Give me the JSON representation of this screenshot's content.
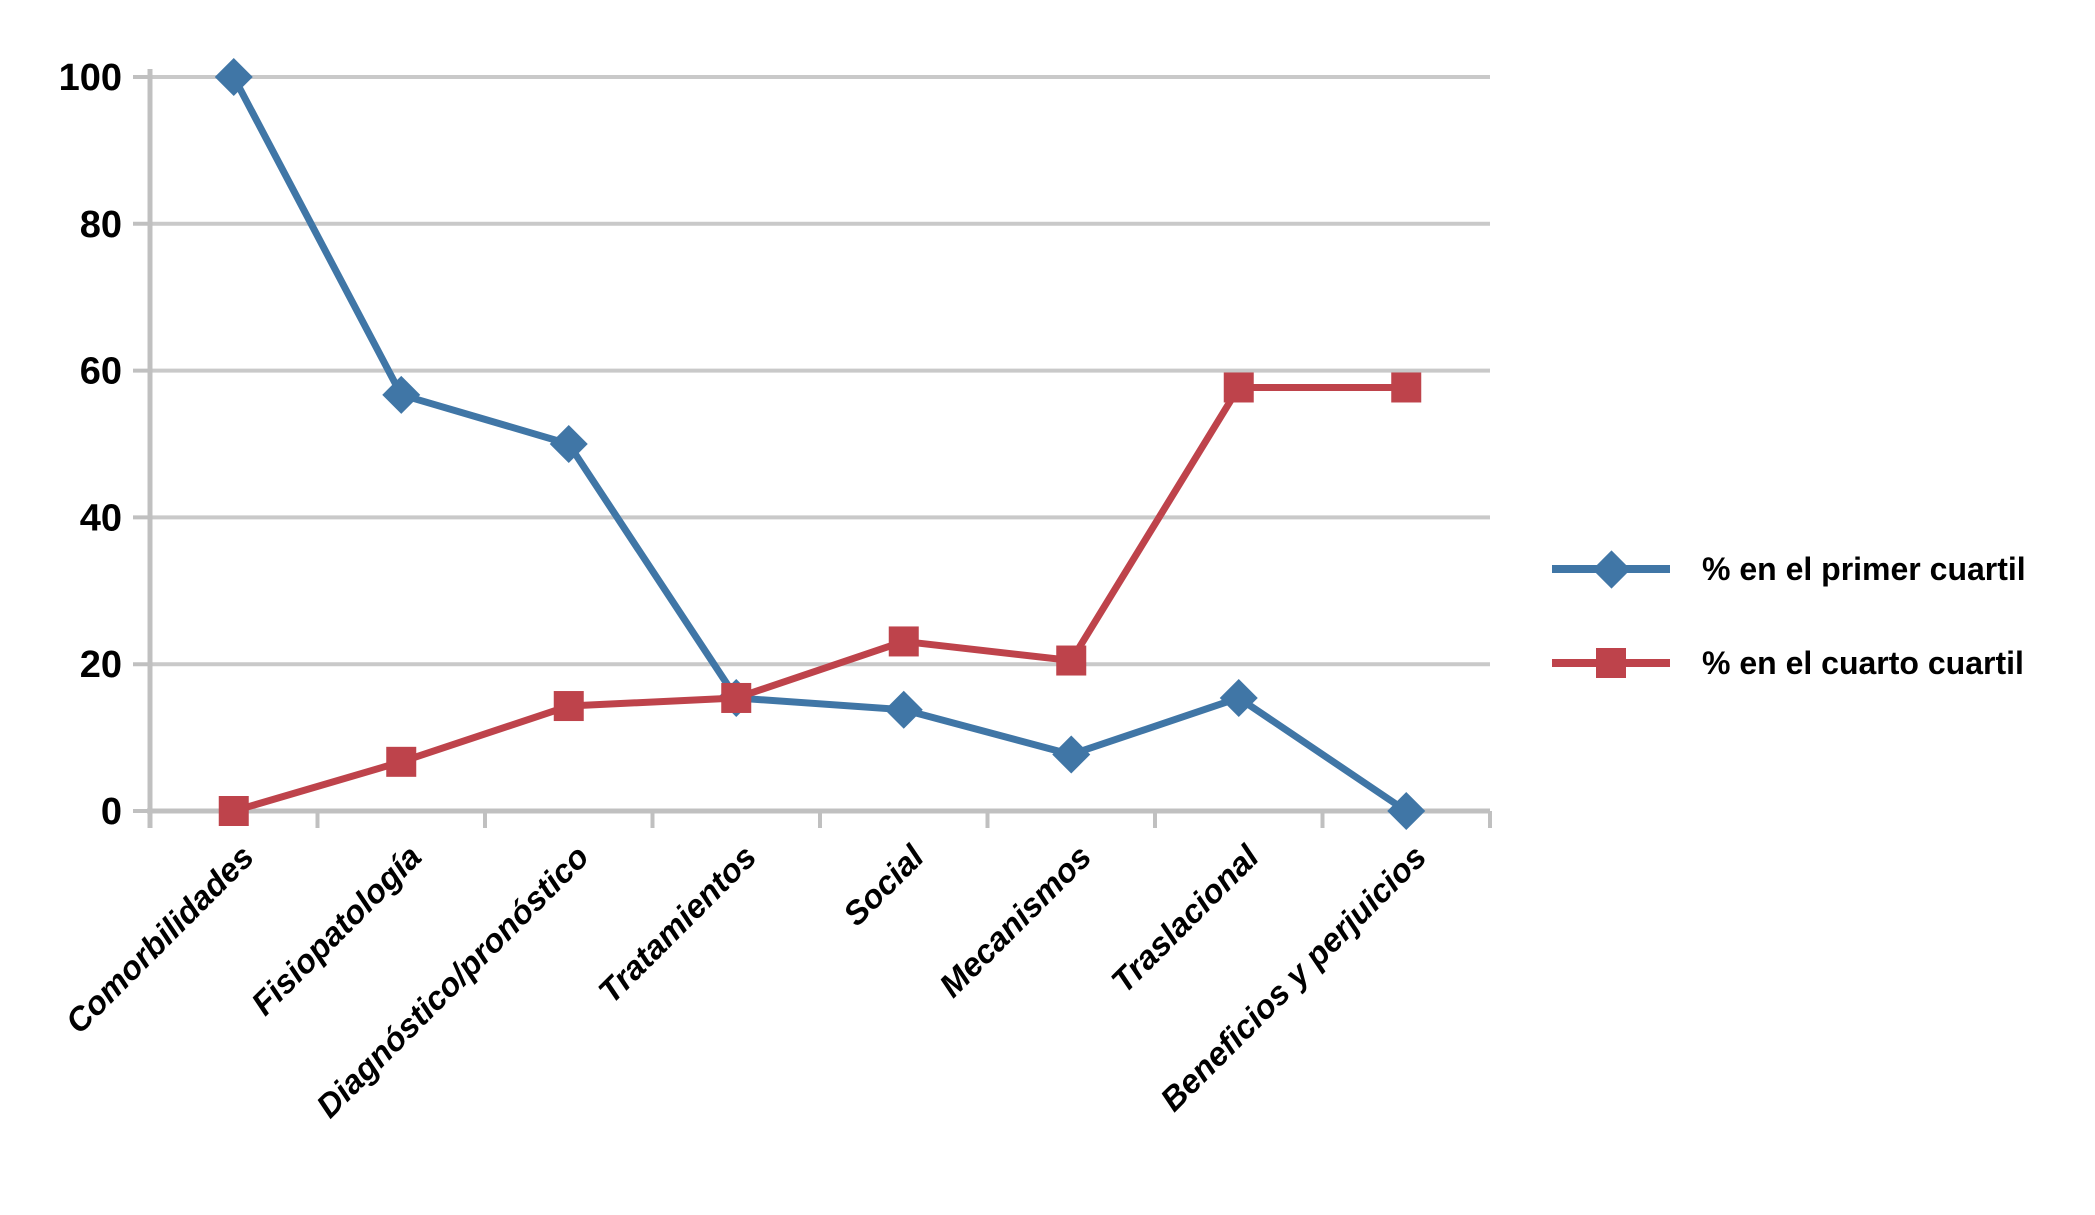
{
  "chart_data": {
    "type": "line",
    "categories": [
      "Comorbilidades",
      "Fisiopatología",
      "Diagnóstico/pronóstico",
      "Tratamientos",
      "Social",
      "Mecanismos",
      "Traslacional",
      "Beneficios y perjuicios"
    ],
    "series": [
      {
        "name": "% en el primer cuartil",
        "color": "#4076A6",
        "marker": "diamond",
        "values": [
          100,
          56.7,
          50,
          15.4,
          13.8,
          7.7,
          15.4,
          0
        ]
      },
      {
        "name": "% en el cuarto cuartil",
        "color": "#BE434B",
        "marker": "square",
        "values": [
          0,
          6.7,
          14.3,
          15.4,
          23.1,
          20.5,
          57.7,
          57.7
        ]
      }
    ],
    "ylim": [
      0,
      100
    ],
    "yticks": [
      0,
      20,
      40,
      60,
      80,
      100
    ],
    "grid": true,
    "legend_position": "right",
    "grid_color": "#C9C9C9",
    "axis_color": "#C0C0C0",
    "text_color": "#000000"
  }
}
